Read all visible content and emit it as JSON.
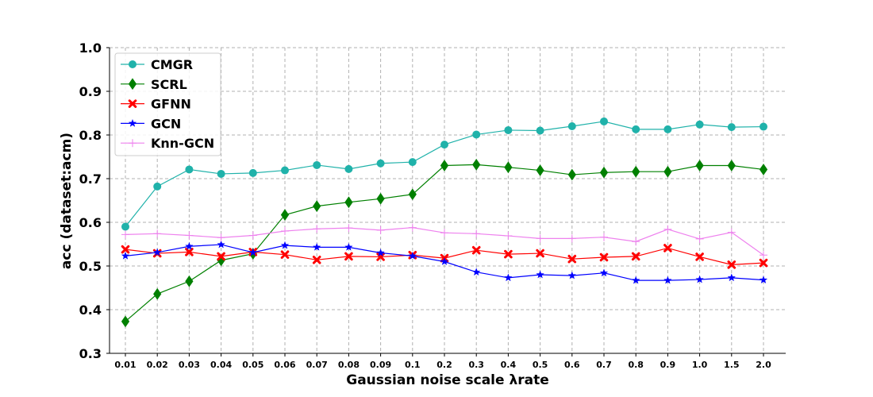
{
  "chart_data": {
    "type": "line",
    "xlabel": "Gaussian noise scale λrate",
    "ylabel": "acc (dataset:acm)",
    "ylim": [
      0.3,
      1.0
    ],
    "yticks": [
      "0.3",
      "0.4",
      "0.5",
      "0.6",
      "0.7",
      "0.8",
      "0.9",
      "1.0"
    ],
    "categories": [
      "0.01",
      "0.02",
      "0.03",
      "0.04",
      "0.05",
      "0.06",
      "0.07",
      "0.08",
      "0.09",
      "0.1",
      "0.2",
      "0.3",
      "0.4",
      "0.5",
      "0.6",
      "0.7",
      "0.8",
      "0.9",
      "1.0",
      "1.5",
      "2.0"
    ],
    "grid": true,
    "legend_position": "top-left",
    "series": [
      {
        "name": "CMGR",
        "color": "#20b2aa",
        "marker": "circle",
        "values": [
          0.59,
          0.682,
          0.721,
          0.711,
          0.713,
          0.719,
          0.731,
          0.722,
          0.735,
          0.738,
          0.778,
          0.801,
          0.811,
          0.81,
          0.82,
          0.831,
          0.813,
          0.813,
          0.824,
          0.818,
          0.819
        ]
      },
      {
        "name": "SCRL",
        "color": "#008000",
        "marker": "diamond",
        "values": [
          0.373,
          0.436,
          0.465,
          0.513,
          0.528,
          0.617,
          0.637,
          0.646,
          0.654,
          0.664,
          0.73,
          0.732,
          0.726,
          0.719,
          0.709,
          0.714,
          0.716,
          0.716,
          0.73,
          0.73,
          0.721
        ]
      },
      {
        "name": "GFNN",
        "color": "#ff0000",
        "marker": "x",
        "values": [
          0.538,
          0.529,
          0.532,
          0.522,
          0.532,
          0.526,
          0.514,
          0.522,
          0.521,
          0.525,
          0.518,
          0.536,
          0.527,
          0.529,
          0.516,
          0.52,
          0.522,
          0.541,
          0.521,
          0.503,
          0.507
        ]
      },
      {
        "name": "GCN",
        "color": "#0000ff",
        "marker": "star",
        "values": [
          0.523,
          0.531,
          0.545,
          0.549,
          0.531,
          0.547,
          0.543,
          0.543,
          0.53,
          0.523,
          0.51,
          0.486,
          0.473,
          0.48,
          0.478,
          0.484,
          0.467,
          0.467,
          0.469,
          0.473,
          0.468
        ]
      },
      {
        "name": "Knn-GCN",
        "color": "#ee82ee",
        "marker": "plus",
        "values": [
          0.572,
          0.574,
          0.57,
          0.565,
          0.57,
          0.58,
          0.585,
          0.587,
          0.582,
          0.588,
          0.576,
          0.574,
          0.569,
          0.563,
          0.563,
          0.566,
          0.556,
          0.584,
          0.562,
          0.577,
          0.525
        ]
      }
    ]
  }
}
